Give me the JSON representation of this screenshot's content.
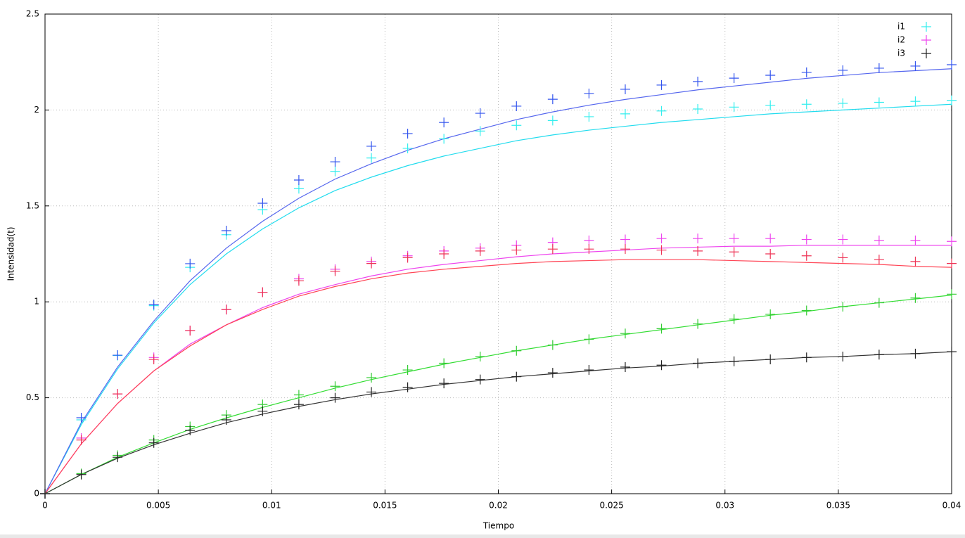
{
  "chart_data": {
    "type": "line",
    "xlabel": "Tiempo",
    "ylabel": "Intensidad(t)",
    "x": [
      0,
      0.0016,
      0.0032,
      0.0048,
      0.0064,
      0.008,
      0.0096,
      0.0112,
      0.0128,
      0.0144,
      0.016,
      0.0176,
      0.0192,
      0.0208,
      0.0224,
      0.024,
      0.0256,
      0.0272,
      0.0288,
      0.0304,
      0.032,
      0.0336,
      0.0352,
      0.0368,
      0.0384,
      0.04
    ],
    "xlim": [
      0,
      0.04
    ],
    "xticks": [
      0,
      0.005,
      0.01,
      0.015,
      0.02,
      0.025,
      0.03,
      0.035,
      0.04
    ],
    "ylim": [
      0,
      2.5
    ],
    "yticks": [
      0,
      0.5,
      1,
      1.5,
      2,
      2.5
    ],
    "grid": true,
    "legend": "top-right",
    "series": [
      {
        "style": "lines",
        "color": "#22dcee",
        "values": [
          0,
          0.36,
          0.65,
          0.89,
          1.09,
          1.25,
          1.38,
          1.49,
          1.58,
          1.65,
          1.71,
          1.76,
          1.8,
          1.84,
          1.87,
          1.895,
          1.915,
          1.935,
          1.95,
          1.965,
          1.98,
          1.99,
          2.0,
          2.01,
          2.02,
          2.03
        ]
      },
      {
        "style": "lines",
        "color": "#5566ee",
        "values": [
          0,
          0.37,
          0.66,
          0.9,
          1.11,
          1.28,
          1.42,
          1.54,
          1.64,
          1.72,
          1.79,
          1.85,
          1.9,
          1.95,
          1.99,
          2.025,
          2.055,
          2.08,
          2.105,
          2.125,
          2.145,
          2.165,
          2.18,
          2.195,
          2.205,
          2.215
        ]
      },
      {
        "style": "lines",
        "color": "#ee44ee",
        "values": [
          0,
          0.26,
          0.47,
          0.64,
          0.78,
          0.88,
          0.97,
          1.04,
          1.09,
          1.135,
          1.17,
          1.195,
          1.215,
          1.235,
          1.25,
          1.26,
          1.27,
          1.28,
          1.285,
          1.29,
          1.29,
          1.295,
          1.295,
          1.295,
          1.295,
          1.295
        ]
      },
      {
        "style": "lines",
        "color": "#ff4455",
        "values": [
          0,
          0.26,
          0.47,
          0.64,
          0.77,
          0.88,
          0.96,
          1.03,
          1.08,
          1.12,
          1.15,
          1.17,
          1.185,
          1.2,
          1.21,
          1.215,
          1.22,
          1.22,
          1.22,
          1.215,
          1.21,
          1.205,
          1.2,
          1.195,
          1.185,
          1.18
        ]
      },
      {
        "style": "lines",
        "color": "#33dd33",
        "values": [
          0,
          0.1,
          0.19,
          0.265,
          0.335,
          0.395,
          0.45,
          0.5,
          0.55,
          0.595,
          0.635,
          0.675,
          0.71,
          0.745,
          0.775,
          0.805,
          0.83,
          0.855,
          0.88,
          0.905,
          0.93,
          0.95,
          0.975,
          0.995,
          1.015,
          1.035
        ]
      },
      {
        "style": "lines",
        "color": "#333333",
        "values": [
          0,
          0.1,
          0.185,
          0.255,
          0.315,
          0.37,
          0.415,
          0.455,
          0.49,
          0.52,
          0.545,
          0.57,
          0.59,
          0.61,
          0.625,
          0.64,
          0.655,
          0.665,
          0.68,
          0.69,
          0.7,
          0.71,
          0.715,
          0.725,
          0.73,
          0.74
        ]
      },
      {
        "name": "i1",
        "style": "points",
        "color": "#33eeee",
        "values": [
          0,
          0.385,
          0.72,
          0.98,
          1.18,
          1.35,
          1.48,
          1.59,
          1.68,
          1.75,
          1.8,
          1.85,
          1.89,
          1.92,
          1.945,
          1.965,
          1.98,
          1.995,
          2.005,
          2.015,
          2.025,
          2.03,
          2.035,
          2.04,
          2.045,
          2.05
        ]
      },
      {
        "style": "points",
        "color": "#3355ee",
        "values": [
          0,
          0.396,
          0.722,
          0.986,
          1.199,
          1.371,
          1.514,
          1.635,
          1.73,
          1.811,
          1.877,
          1.935,
          1.983,
          2.02,
          2.056,
          2.086,
          2.108,
          2.13,
          2.148,
          2.166,
          2.181,
          2.196,
          2.207,
          2.218,
          2.229,
          2.236
        ]
      },
      {
        "name": "i2",
        "style": "points",
        "color": "#ee44ee",
        "values": [
          0,
          0.29,
          0.52,
          0.71,
          0.85,
          0.96,
          1.05,
          1.12,
          1.17,
          1.21,
          1.24,
          1.265,
          1.28,
          1.295,
          1.31,
          1.32,
          1.325,
          1.33,
          1.33,
          1.33,
          1.33,
          1.325,
          1.325,
          1.32,
          1.32,
          1.315
        ]
      },
      {
        "style": "points",
        "color": "#ee3355",
        "values": [
          0,
          0.28,
          0.52,
          0.7,
          0.85,
          0.96,
          1.05,
          1.11,
          1.16,
          1.2,
          1.23,
          1.25,
          1.265,
          1.27,
          1.275,
          1.275,
          1.275,
          1.27,
          1.265,
          1.26,
          1.25,
          1.24,
          1.23,
          1.22,
          1.21,
          1.2
        ]
      },
      {
        "style": "points",
        "color": "#33cc33",
        "values": [
          0,
          0.105,
          0.2,
          0.28,
          0.35,
          0.41,
          0.465,
          0.515,
          0.56,
          0.605,
          0.645,
          0.68,
          0.715,
          0.745,
          0.775,
          0.805,
          0.835,
          0.86,
          0.885,
          0.91,
          0.935,
          0.955,
          0.975,
          0.995,
          1.02,
          1.04
        ]
      },
      {
        "name": "i3",
        "style": "points",
        "color": "#222222",
        "values": [
          0,
          0.1,
          0.19,
          0.265,
          0.33,
          0.385,
          0.43,
          0.465,
          0.5,
          0.53,
          0.555,
          0.575,
          0.595,
          0.61,
          0.63,
          0.645,
          0.66,
          0.67,
          0.68,
          0.69,
          0.7,
          0.71,
          0.715,
          0.725,
          0.73,
          0.74
        ]
      }
    ]
  }
}
